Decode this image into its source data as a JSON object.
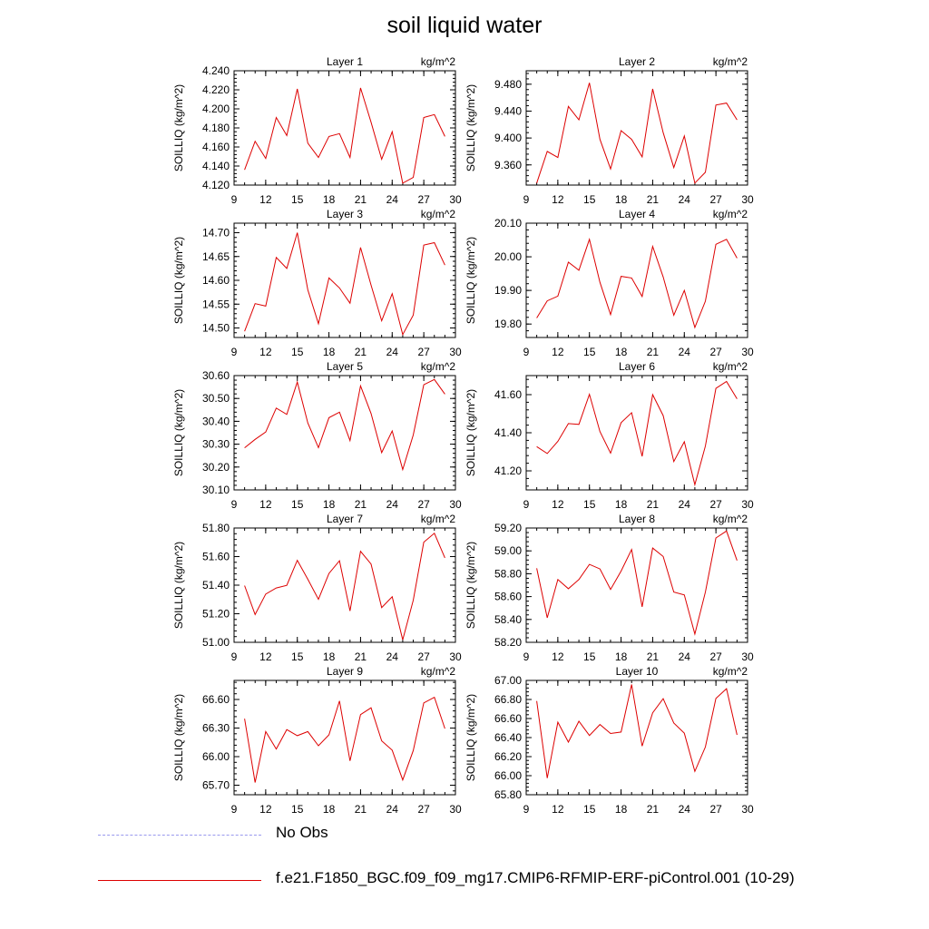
{
  "figure": {
    "title": "soil liquid water",
    "unit_label": "kg/m^2",
    "ylabel": "SOILLIQ  (kg/m^2)"
  },
  "legend": [
    {
      "label": "No Obs",
      "color": "#9999ee",
      "style": "dashed"
    },
    {
      "label": "f.e21.F1850_BGC.f09_f09_mg17.CMIP6-RFMIP-ERF-piControl.001 (10-29)",
      "color": "#dd0000",
      "style": "solid"
    }
  ],
  "colors": {
    "series": "#dd0000",
    "obs": "#9999ee"
  },
  "chart_data": [
    {
      "type": "line",
      "title": "Layer 1",
      "unit": "kg/m^2",
      "ylabel": "SOILLIQ  (kg/m^2)",
      "xlim": [
        9,
        30
      ],
      "xticks": [
        9,
        12,
        15,
        18,
        21,
        24,
        27,
        30
      ],
      "ylim": [
        4.12,
        4.24
      ],
      "yticks": [
        "4.120",
        "4.140",
        "4.160",
        "4.180",
        "4.200",
        "4.220",
        "4.240"
      ],
      "x": [
        10,
        11,
        12,
        13,
        14,
        15,
        16,
        17,
        18,
        19,
        20,
        21,
        22,
        23,
        24,
        25,
        26,
        27,
        28,
        29
      ],
      "series": [
        {
          "values": [
            4.136,
            4.166,
            4.148,
            4.191,
            4.172,
            4.221,
            4.164,
            4.149,
            4.171,
            4.174,
            4.149,
            4.222,
            4.186,
            4.147,
            4.176,
            4.122,
            4.128,
            4.191,
            4.194,
            4.171
          ]
        }
      ]
    },
    {
      "type": "line",
      "title": "Layer 2",
      "unit": "kg/m^2",
      "ylabel": "SOILLIQ  (kg/m^2)",
      "xlim": [
        9,
        30
      ],
      "xticks": [
        9,
        12,
        15,
        18,
        21,
        24,
        27,
        30
      ],
      "ylim": [
        9.33,
        9.5
      ],
      "yticks": [
        "9.360",
        "9.400",
        "9.440",
        "9.480"
      ],
      "x": [
        10,
        11,
        12,
        13,
        14,
        15,
        16,
        17,
        18,
        19,
        20,
        21,
        22,
        23,
        24,
        25,
        26,
        27,
        28,
        29
      ],
      "series": [
        {
          "values": [
            9.333,
            9.38,
            9.371,
            9.447,
            9.427,
            9.482,
            9.398,
            9.354,
            9.411,
            9.398,
            9.372,
            9.473,
            9.408,
            9.356,
            9.403,
            9.333,
            9.349,
            9.449,
            9.452,
            9.427
          ]
        }
      ]
    },
    {
      "type": "line",
      "title": "Layer 3",
      "unit": "kg/m^2",
      "ylabel": "SOILLIQ  (kg/m^2)",
      "xlim": [
        9,
        30
      ],
      "xticks": [
        9,
        12,
        15,
        18,
        21,
        24,
        27,
        30
      ],
      "ylim": [
        14.48,
        14.72
      ],
      "yticks": [
        "14.50",
        "14.55",
        "14.60",
        "14.65",
        "14.70"
      ],
      "x": [
        10,
        11,
        12,
        13,
        14,
        15,
        16,
        17,
        18,
        19,
        20,
        21,
        22,
        23,
        24,
        25,
        26,
        27,
        28,
        29
      ],
      "series": [
        {
          "values": [
            14.493,
            14.551,
            14.546,
            14.648,
            14.625,
            14.7,
            14.58,
            14.509,
            14.605,
            14.584,
            14.552,
            14.669,
            14.59,
            14.515,
            14.572,
            14.486,
            14.527,
            14.674,
            14.679,
            14.632
          ]
        }
      ]
    },
    {
      "type": "line",
      "title": "Layer 4",
      "unit": "kg/m^2",
      "ylabel": "SOILLIQ  (kg/m^2)",
      "xlim": [
        9,
        30
      ],
      "xticks": [
        9,
        12,
        15,
        18,
        21,
        24,
        27,
        30
      ],
      "ylim": [
        19.76,
        20.1
      ],
      "yticks": [
        "19.80",
        "19.90",
        "20.00",
        "20.10"
      ],
      "x": [
        10,
        11,
        12,
        13,
        14,
        15,
        16,
        17,
        18,
        19,
        20,
        21,
        22,
        23,
        24,
        25,
        26,
        27,
        28,
        29
      ],
      "series": [
        {
          "values": [
            19.818,
            19.869,
            19.883,
            19.984,
            19.96,
            20.052,
            19.924,
            19.828,
            19.942,
            19.937,
            19.882,
            20.031,
            19.94,
            19.826,
            19.9,
            19.79,
            19.868,
            20.037,
            20.052,
            19.996
          ]
        }
      ]
    },
    {
      "type": "line",
      "title": "Layer 5",
      "unit": "kg/m^2",
      "ylabel": "SOILLIQ  (kg/m^2)",
      "xlim": [
        9,
        30
      ],
      "xticks": [
        9,
        12,
        15,
        18,
        21,
        24,
        27,
        30
      ],
      "ylim": [
        30.1,
        30.6
      ],
      "yticks": [
        "30.10",
        "30.20",
        "30.30",
        "30.40",
        "30.50",
        "30.60"
      ],
      "x": [
        10,
        11,
        12,
        13,
        14,
        15,
        16,
        17,
        18,
        19,
        20,
        21,
        22,
        23,
        24,
        25,
        26,
        27,
        28,
        29
      ],
      "series": [
        {
          "values": [
            30.284,
            30.321,
            30.353,
            30.458,
            30.43,
            30.572,
            30.393,
            30.285,
            30.416,
            30.44,
            30.316,
            30.555,
            30.434,
            30.263,
            30.358,
            30.189,
            30.34,
            30.56,
            30.583,
            30.519
          ]
        }
      ]
    },
    {
      "type": "line",
      "title": "Layer 6",
      "unit": "kg/m^2",
      "ylabel": "SOILLIQ  (kg/m^2)",
      "xlim": [
        9,
        30
      ],
      "xticks": [
        9,
        12,
        15,
        18,
        21,
        24,
        27,
        30
      ],
      "ylim": [
        41.1,
        41.7
      ],
      "yticks": [
        "41.20",
        "41.40",
        "41.60"
      ],
      "x": [
        10,
        11,
        12,
        13,
        14,
        15,
        16,
        17,
        18,
        19,
        20,
        21,
        22,
        23,
        24,
        25,
        26,
        27,
        28,
        29
      ],
      "series": [
        {
          "values": [
            41.327,
            41.291,
            41.355,
            41.448,
            41.444,
            41.602,
            41.406,
            41.293,
            41.453,
            41.505,
            41.276,
            41.6,
            41.49,
            41.249,
            41.353,
            41.127,
            41.33,
            41.633,
            41.669,
            41.578
          ]
        }
      ]
    },
    {
      "type": "line",
      "title": "Layer 7",
      "unit": "kg/m^2",
      "ylabel": "SOILLIQ  (kg/m^2)",
      "xlim": [
        9,
        30
      ],
      "xticks": [
        9,
        12,
        15,
        18,
        21,
        24,
        27,
        30
      ],
      "ylim": [
        51.0,
        51.8
      ],
      "yticks": [
        "51.00",
        "51.20",
        "51.40",
        "51.60",
        "51.80"
      ],
      "x": [
        10,
        11,
        12,
        13,
        14,
        15,
        16,
        17,
        18,
        19,
        20,
        21,
        22,
        23,
        24,
        25,
        26,
        27,
        28,
        29
      ],
      "series": [
        {
          "values": [
            51.397,
            51.194,
            51.338,
            51.38,
            51.399,
            51.574,
            51.441,
            51.301,
            51.482,
            51.571,
            51.22,
            51.637,
            51.548,
            51.243,
            51.319,
            51.018,
            51.294,
            51.701,
            51.763,
            51.591
          ]
        }
      ]
    },
    {
      "type": "line",
      "title": "Layer 8",
      "unit": "kg/m^2",
      "ylabel": "SOILLIQ  (kg/m^2)",
      "xlim": [
        9,
        30
      ],
      "xticks": [
        9,
        12,
        15,
        18,
        21,
        24,
        27,
        30
      ],
      "ylim": [
        58.2,
        59.2
      ],
      "yticks": [
        "58.20",
        "58.40",
        "58.60",
        "58.80",
        "59.00",
        "59.20"
      ],
      "x": [
        10,
        11,
        12,
        13,
        14,
        15,
        16,
        17,
        18,
        19,
        20,
        21,
        22,
        23,
        24,
        25,
        26,
        27,
        28,
        29
      ],
      "series": [
        {
          "values": [
            58.848,
            58.414,
            58.749,
            58.669,
            58.749,
            58.882,
            58.842,
            58.663,
            58.823,
            59.012,
            58.51,
            59.025,
            58.951,
            58.64,
            58.614,
            58.272,
            58.639,
            59.113,
            59.174,
            58.916
          ]
        }
      ]
    },
    {
      "type": "line",
      "title": "Layer 9",
      "unit": "kg/m^2",
      "ylabel": "SOILLIQ  (kg/m^2)",
      "xlim": [
        9,
        30
      ],
      "xticks": [
        9,
        12,
        15,
        18,
        21,
        24,
        27,
        30
      ],
      "ylim": [
        65.6,
        66.8
      ],
      "yticks": [
        "65.70",
        "66.00",
        "66.30",
        "66.60"
      ],
      "x": [
        10,
        11,
        12,
        13,
        14,
        15,
        16,
        17,
        18,
        19,
        20,
        21,
        22,
        23,
        24,
        25,
        26,
        27,
        28,
        29
      ],
      "series": [
        {
          "values": [
            66.398,
            65.729,
            66.263,
            66.08,
            66.284,
            66.22,
            66.263,
            66.114,
            66.229,
            66.585,
            65.955,
            66.441,
            66.512,
            66.166,
            66.068,
            65.755,
            66.064,
            66.564,
            66.623,
            66.294
          ]
        }
      ]
    },
    {
      "type": "line",
      "title": "Layer 10",
      "unit": "kg/m^2",
      "ylabel": "SOILLIQ  (kg/m^2)",
      "xlim": [
        9,
        30
      ],
      "xticks": [
        9,
        12,
        15,
        18,
        21,
        24,
        27,
        30
      ],
      "ylim": [
        65.8,
        67.0
      ],
      "yticks": [
        "65.80",
        "66.00",
        "66.20",
        "66.40",
        "66.60",
        "66.80",
        "67.00"
      ],
      "x": [
        10,
        11,
        12,
        13,
        14,
        15,
        16,
        17,
        18,
        19,
        20,
        21,
        22,
        23,
        24,
        25,
        26,
        27,
        28,
        29
      ],
      "series": [
        {
          "values": [
            66.784,
            65.974,
            66.562,
            66.352,
            66.571,
            66.422,
            66.537,
            66.443,
            66.458,
            66.957,
            66.31,
            66.66,
            66.809,
            66.552,
            66.446,
            66.045,
            66.301,
            66.81,
            66.913,
            66.429
          ]
        }
      ]
    }
  ]
}
